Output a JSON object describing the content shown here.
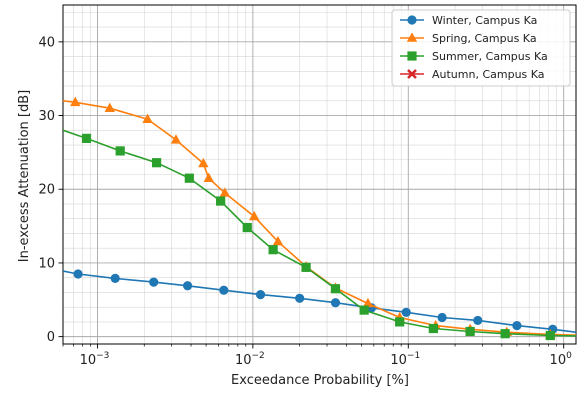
{
  "chart_data": {
    "type": "line",
    "xscale": "log",
    "xlim": [
      0.0006,
      1.2
    ],
    "ylim": [
      -1,
      45
    ],
    "xlabel": "Exceedance Probability [%]",
    "ylabel": "In-excess Attenuation [dB]",
    "x_ticks": [
      {
        "value": 0.001,
        "base": "10",
        "exp": "−3"
      },
      {
        "value": 0.01,
        "base": "10",
        "exp": "−2"
      },
      {
        "value": 0.1,
        "base": "10",
        "exp": "−1"
      },
      {
        "value": 1,
        "base": "10",
        "exp": "0"
      }
    ],
    "y_ticks": [
      0,
      10,
      20,
      30,
      40
    ],
    "grid": "major and minor",
    "legend_position": "top-right",
    "series": [
      {
        "name": "Winter, Campus Ka",
        "color": "#1f77b4",
        "marker": "circle",
        "x": [
          0.0006,
          0.00075,
          0.0013,
          0.0023,
          0.0038,
          0.0065,
          0.0112,
          0.02,
          0.034,
          0.058,
          0.097,
          0.165,
          0.28,
          0.5,
          0.85,
          1.2
        ],
        "y": [
          8.9,
          8.5,
          7.9,
          7.4,
          6.9,
          6.3,
          5.7,
          5.2,
          4.6,
          3.9,
          3.3,
          2.6,
          2.2,
          1.5,
          1.0,
          0.6
        ]
      },
      {
        "name": "Spring, Campus Ka",
        "color": "#ff7f0e",
        "marker": "triangle",
        "x": [
          0.0006,
          0.00072,
          0.0012,
          0.0021,
          0.0032,
          0.0048,
          0.0052,
          0.0066,
          0.0102,
          0.0145,
          0.022,
          0.034,
          0.055,
          0.088,
          0.15,
          0.25,
          0.43,
          0.82,
          1.2
        ],
        "y": [
          32.0,
          31.8,
          31.0,
          29.5,
          26.7,
          23.5,
          21.5,
          19.5,
          16.3,
          12.9,
          9.5,
          6.6,
          4.5,
          2.6,
          1.5,
          1.0,
          0.6,
          0.3,
          0.2
        ]
      },
      {
        "name": "Summer, Campus Ka",
        "color": "#2ca02c",
        "marker": "square",
        "x": [
          0.0006,
          0.00085,
          0.0014,
          0.0024,
          0.0039,
          0.0062,
          0.0092,
          0.0135,
          0.022,
          0.034,
          0.052,
          0.088,
          0.145,
          0.25,
          0.42,
          0.82,
          1.2
        ],
        "y": [
          28.0,
          26.9,
          25.2,
          23.6,
          21.5,
          18.4,
          14.8,
          11.8,
          9.4,
          6.5,
          3.6,
          2.0,
          1.1,
          0.7,
          0.4,
          0.15,
          0.1
        ]
      },
      {
        "name": "Autumn, Campus Ka",
        "color": "#d62728",
        "marker": "x",
        "x": [],
        "y": []
      }
    ]
  }
}
